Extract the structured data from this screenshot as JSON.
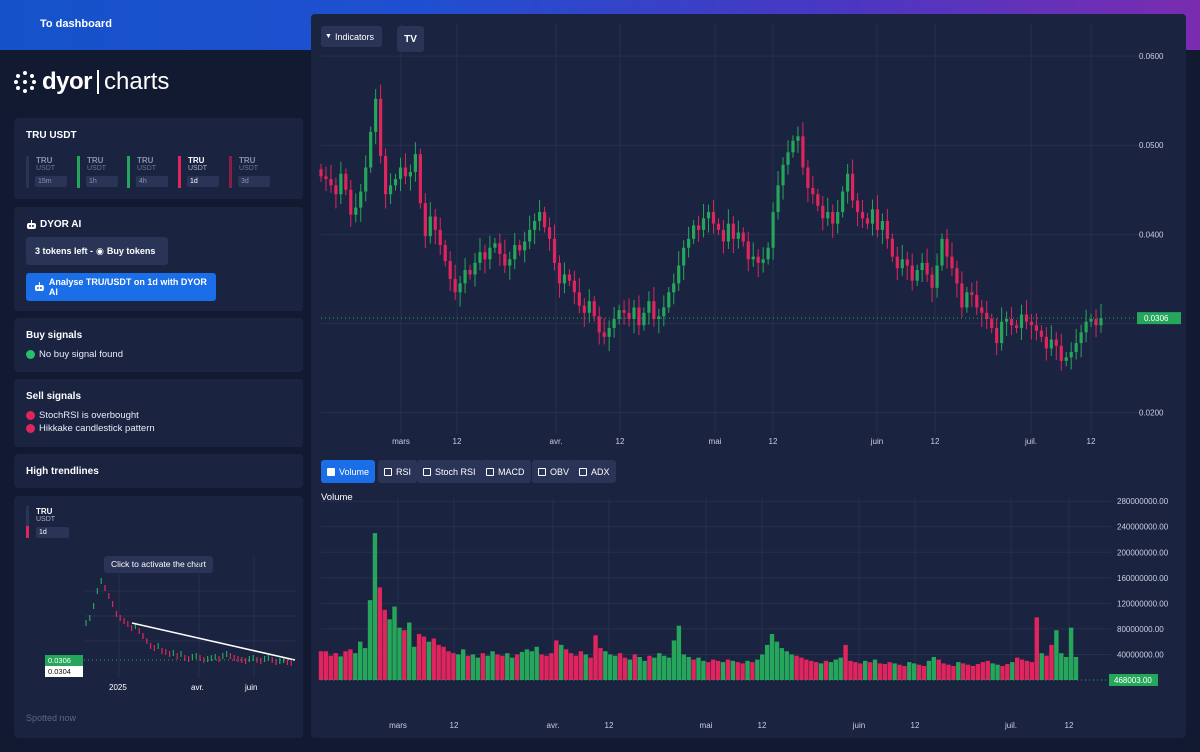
{
  "header": {
    "dashboard_link": "To dashboard"
  },
  "logo": {
    "word": "dyor",
    "suffix": "charts"
  },
  "pair_card": {
    "title": "TRU USDT",
    "timeframes": [
      {
        "symbol": "TRU",
        "quote": "USDT",
        "interval": "15m",
        "color": "#2a3456",
        "active": false
      },
      {
        "symbol": "TRU",
        "quote": "USDT",
        "interval": "1h",
        "color": "#26a65b",
        "active": false
      },
      {
        "symbol": "TRU",
        "quote": "USDT",
        "interval": "4h",
        "color": "#26a65b",
        "active": false
      },
      {
        "symbol": "TRU",
        "quote": "USDT",
        "interval": "1d",
        "color": "#e0245e",
        "active": true
      },
      {
        "symbol": "TRU",
        "quote": "USDT",
        "interval": "3d",
        "color": "#8a1c45",
        "active": false
      }
    ]
  },
  "ai_card": {
    "title": "DYOR AI",
    "tokens_label": "3 tokens left - ",
    "buy_tokens_label": "Buy tokens",
    "analyse_label": "Analyse TRU/USDT on 1d with DYOR AI"
  },
  "buy_signals": {
    "title": "Buy signals",
    "items": [
      "No buy signal found"
    ],
    "color": "#26c06a"
  },
  "sell_signals": {
    "title": "Sell signals",
    "items": [
      "StochRSI is overbought",
      "Hikkake candlestick pattern"
    ],
    "color": "#e0245e"
  },
  "trendlines": {
    "title": "High trendlines",
    "mini": {
      "symbol": "TRU",
      "quote": "USDT",
      "interval": "1d",
      "tooltip": "Click to activate the chart",
      "price_green": "0.0306",
      "price_white": "0.0304",
      "x_labels": [
        "2025",
        "avr.",
        "juin"
      ],
      "footer": "Spotted now"
    }
  },
  "toolbar": {
    "indicators_label": "Indicators",
    "tv_label": "TV"
  },
  "indicator_toggles": [
    {
      "label": "Volume",
      "checked": true
    },
    {
      "label": "RSI",
      "checked": false
    },
    {
      "label": "Stoch RSI",
      "checked": false
    },
    {
      "label": "MACD",
      "checked": false
    },
    {
      "label": "OBV",
      "checked": false
    },
    {
      "label": "ADX",
      "checked": false
    }
  ],
  "colors": {
    "up": "#26a65b",
    "down": "#e0245e",
    "accent": "#1a6fe8"
  },
  "chart_data": [
    {
      "type": "candlestick",
      "title": "",
      "price_ticks": [
        "0.0600",
        "0.0500",
        "0.0400",
        "0.0200"
      ],
      "y_tick_values": [
        0.06,
        0.05,
        0.04,
        0.03,
        0.02
      ],
      "ylim": [
        0.0176,
        0.0636
      ],
      "x_ticks": [
        "mars",
        "12",
        "avr.",
        "12",
        "mai",
        "12",
        "juin",
        "12",
        "juil.",
        "12"
      ],
      "last_price": "0.0306",
      "grid": true,
      "closes": [
        0.0465,
        0.0462,
        0.0455,
        0.0445,
        0.0468,
        0.045,
        0.0422,
        0.043,
        0.0448,
        0.0475,
        0.0515,
        0.0552,
        0.0488,
        0.0445,
        0.0455,
        0.0462,
        0.0475,
        0.0465,
        0.047,
        0.049,
        0.0435,
        0.0398,
        0.042,
        0.0405,
        0.0388,
        0.037,
        0.035,
        0.0335,
        0.0345,
        0.036,
        0.0355,
        0.0368,
        0.038,
        0.0372,
        0.0385,
        0.039,
        0.0378,
        0.0365,
        0.0372,
        0.0388,
        0.0382,
        0.0392,
        0.0405,
        0.0415,
        0.0425,
        0.0408,
        0.0395,
        0.0368,
        0.0345,
        0.0355,
        0.0348,
        0.0335,
        0.032,
        0.0312,
        0.0325,
        0.0308,
        0.029,
        0.0285,
        0.0295,
        0.0305,
        0.0315,
        0.0312,
        0.0305,
        0.0318,
        0.0298,
        0.0312,
        0.0325,
        0.0305,
        0.0308,
        0.0318,
        0.0335,
        0.0345,
        0.0365,
        0.0385,
        0.0395,
        0.041,
        0.0405,
        0.0418,
        0.0425,
        0.0412,
        0.0405,
        0.0392,
        0.0412,
        0.0395,
        0.0402,
        0.0392,
        0.0372,
        0.0375,
        0.0368,
        0.0372,
        0.0385,
        0.0425,
        0.0455,
        0.0478,
        0.0492,
        0.0505,
        0.051,
        0.0475,
        0.0452,
        0.0445,
        0.0432,
        0.0418,
        0.0425,
        0.0412,
        0.0425,
        0.0448,
        0.0468,
        0.0438,
        0.0425,
        0.0418,
        0.0412,
        0.0428,
        0.0405,
        0.0415,
        0.0395,
        0.0375,
        0.0362,
        0.0372,
        0.0365,
        0.0348,
        0.036,
        0.0368,
        0.0355,
        0.034,
        0.0365,
        0.0395,
        0.0375,
        0.0362,
        0.0345,
        0.0318,
        0.0335,
        0.0332,
        0.0318,
        0.0312,
        0.0305,
        0.0295,
        0.0278,
        0.0302,
        0.0305,
        0.0298,
        0.0295,
        0.031,
        0.0302,
        0.0298,
        0.0292,
        0.0285,
        0.0272,
        0.0282,
        0.0275,
        0.0258,
        0.0262,
        0.0268,
        0.0278,
        0.029,
        0.0302,
        0.0305,
        0.0298,
        0.0306
      ]
    },
    {
      "type": "bar",
      "title": "Volume",
      "y_ticks": [
        "280000000.00",
        "240000000.00",
        "200000000.00",
        "160000000.00",
        "120000000.00",
        "80000000.00",
        "40000000.00"
      ],
      "y_tick_values": [
        280000000,
        240000000,
        200000000,
        160000000,
        120000000,
        80000000,
        40000000
      ],
      "ylim": [
        0,
        285000000
      ],
      "last_volume": "468003.00",
      "x_ticks": [
        "mars",
        "12",
        "avr.",
        "12",
        "mai",
        "12",
        "juin",
        "12",
        "juil.",
        "12"
      ],
      "values": [
        45000000,
        45000000,
        38000000,
        42000000,
        37000000,
        45000000,
        48000000,
        42000000,
        60000000,
        50000000,
        125000000,
        230000000,
        145000000,
        110000000,
        95000000,
        115000000,
        82000000,
        78000000,
        90000000,
        52000000,
        72000000,
        68000000,
        60000000,
        65000000,
        55000000,
        52000000,
        45000000,
        42000000,
        40000000,
        48000000,
        38000000,
        40000000,
        35000000,
        42000000,
        38000000,
        45000000,
        40000000,
        38000000,
        42000000,
        35000000,
        40000000,
        44000000,
        48000000,
        45000000,
        52000000,
        40000000,
        38000000,
        42000000,
        62000000,
        55000000,
        48000000,
        42000000,
        38000000,
        45000000,
        40000000,
        35000000,
        70000000,
        50000000,
        45000000,
        40000000,
        38000000,
        42000000,
        35000000,
        32000000,
        40000000,
        36000000,
        30000000,
        38000000,
        35000000,
        42000000,
        38000000,
        35000000,
        62000000,
        85000000,
        40000000,
        36000000,
        32000000,
        35000000,
        30000000,
        28000000,
        32000000,
        30000000,
        28000000,
        32000000,
        30000000,
        28000000,
        26000000,
        30000000,
        28000000,
        32000000,
        40000000,
        55000000,
        72000000,
        60000000,
        50000000,
        45000000,
        40000000,
        38000000,
        35000000,
        32000000,
        30000000,
        28000000,
        26000000,
        30000000,
        28000000,
        32000000,
        35000000,
        55000000,
        30000000,
        28000000,
        26000000,
        30000000,
        28000000,
        32000000,
        26000000,
        25000000,
        28000000,
        26000000,
        24000000,
        22000000,
        28000000,
        26000000,
        24000000,
        22000000,
        30000000,
        36000000,
        32000000,
        26000000,
        24000000,
        22000000,
        28000000,
        26000000,
        24000000,
        22000000,
        25000000,
        28000000,
        30000000,
        26000000,
        24000000,
        22000000,
        25000000,
        28000000,
        35000000,
        32000000,
        30000000,
        28000000,
        98000000,
        42000000,
        38000000,
        55000000,
        78000000,
        42000000,
        36000000,
        82000000,
        36000000
      ]
    }
  ]
}
